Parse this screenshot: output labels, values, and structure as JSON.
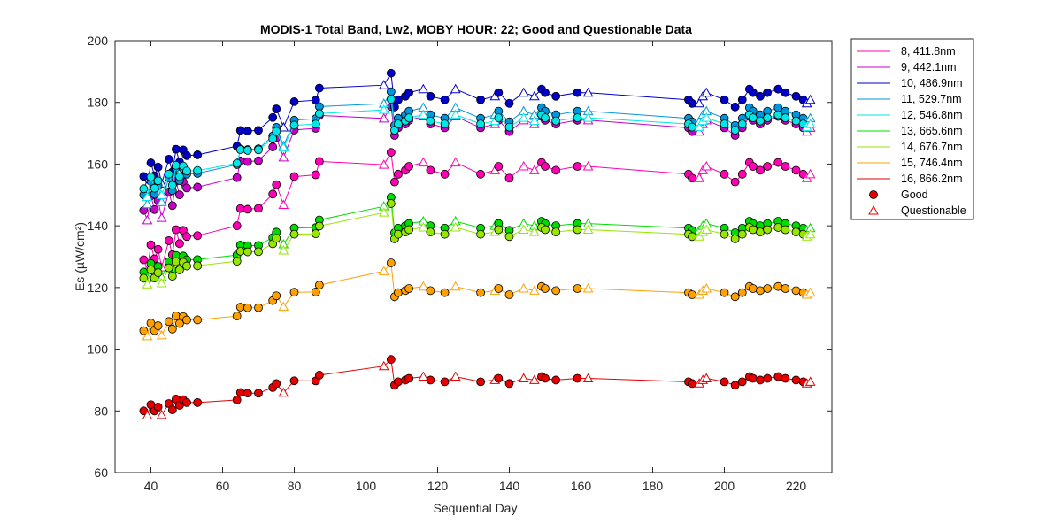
{
  "chart_data": {
    "type": "line",
    "title": "MODIS-1 Total Band,  Lw2, MOBY HOUR: 22;  Good and Questionable Data",
    "xlabel": "Sequential Day",
    "ylabel": "Es (µW/cm²)",
    "xlim": [
      30,
      230
    ],
    "ylim": [
      60,
      200
    ],
    "xticks": [
      40,
      60,
      80,
      100,
      120,
      140,
      160,
      180,
      200,
      220
    ],
    "yticks": [
      60,
      80,
      100,
      120,
      140,
      160,
      180,
      200
    ],
    "x": [
      38,
      39,
      40,
      41,
      42,
      43,
      45,
      46,
      47,
      48,
      49,
      50,
      53,
      64,
      65,
      67,
      70,
      74,
      75,
      77,
      80,
      86,
      87,
      105,
      107,
      108,
      109,
      111,
      112,
      116,
      118,
      122,
      125,
      132,
      136,
      137,
      140,
      144,
      147,
      149,
      150,
      153,
      159,
      162,
      190,
      191,
      193,
      194,
      195,
      200,
      203,
      205,
      207,
      208,
      210,
      212,
      215,
      217,
      220,
      222,
      223,
      224
    ],
    "good_flags": [
      1,
      0,
      1,
      1,
      1,
      0,
      1,
      1,
      1,
      1,
      1,
      1,
      1,
      1,
      1,
      1,
      1,
      1,
      1,
      0,
      1,
      1,
      1,
      0,
      1,
      1,
      1,
      1,
      1,
      0,
      1,
      1,
      0,
      1,
      0,
      1,
      1,
      0,
      0,
      1,
      1,
      1,
      1,
      0,
      1,
      1,
      0,
      0,
      0,
      1,
      1,
      1,
      1,
      1,
      1,
      1,
      1,
      1,
      1,
      1,
      0,
      0
    ],
    "offsets": [
      0,
      -1.5,
      1.5,
      -0.5,
      0.5,
      -2,
      1,
      -1,
      2,
      0,
      1.5,
      0.5,
      0,
      -1,
      1,
      0.5,
      0,
      1,
      2,
      -1,
      2,
      1,
      2.5,
      0,
      1.5,
      -1.5,
      -0.5,
      0,
      0.5,
      1,
      0,
      -0.5,
      1,
      -0.5,
      0,
      0.5,
      -1,
      0.5,
      0,
      1,
      0.5,
      0,
      0.5,
      0.5,
      -0.5,
      -1,
      -1,
      0,
      0.5,
      -0.5,
      -1.5,
      -0.5,
      1,
      0.5,
      0,
      0.5,
      1,
      0.5,
      0,
      -0.5,
      -1,
      -0.5
    ],
    "series": [
      {
        "name": "8, 411.8nm",
        "color": "#ff00b4",
        "base": 129,
        "plateau": 158,
        "peak": 160
      },
      {
        "name": "9, 442.1nm",
        "color": "#c800c8",
        "base": 145,
        "plateau": 173,
        "peak": 175
      },
      {
        "name": "10, 486.9nm",
        "color": "#0000c8",
        "base": 156,
        "plateau": 182,
        "peak": 186
      },
      {
        "name": "11, 529.7nm",
        "color": "#0096dc",
        "base": 150,
        "plateau": 176,
        "peak": 180
      },
      {
        "name": "12, 546.8nm",
        "color": "#00e6e6",
        "base": 152,
        "plateau": 174,
        "peak": 178
      },
      {
        "name": "13, 665.6nm",
        "color": "#00dc00",
        "base": 125,
        "plateau": 140,
        "peak": 147
      },
      {
        "name": "14, 676.7nm",
        "color": "#96e600",
        "base": 123,
        "plateau": 138,
        "peak": 145
      },
      {
        "name": "15, 746.4nm",
        "color": "#ffa000",
        "base": 106,
        "plateau": 119,
        "peak": 126
      },
      {
        "name": "16, 866.2nm",
        "color": "#e60000",
        "base": 80,
        "plateau": 90,
        "peak": 95
      }
    ],
    "legend": {
      "position": "outside-right",
      "entries": [
        "8, 411.8nm",
        "9, 442.1nm",
        "10, 486.9nm",
        "11, 529.7nm",
        "12, 546.8nm",
        "13, 665.6nm",
        "14, 676.7nm",
        "15, 746.4nm",
        "16, 866.2nm"
      ],
      "good_label": "Good",
      "questionable_label": "Questionable"
    }
  }
}
